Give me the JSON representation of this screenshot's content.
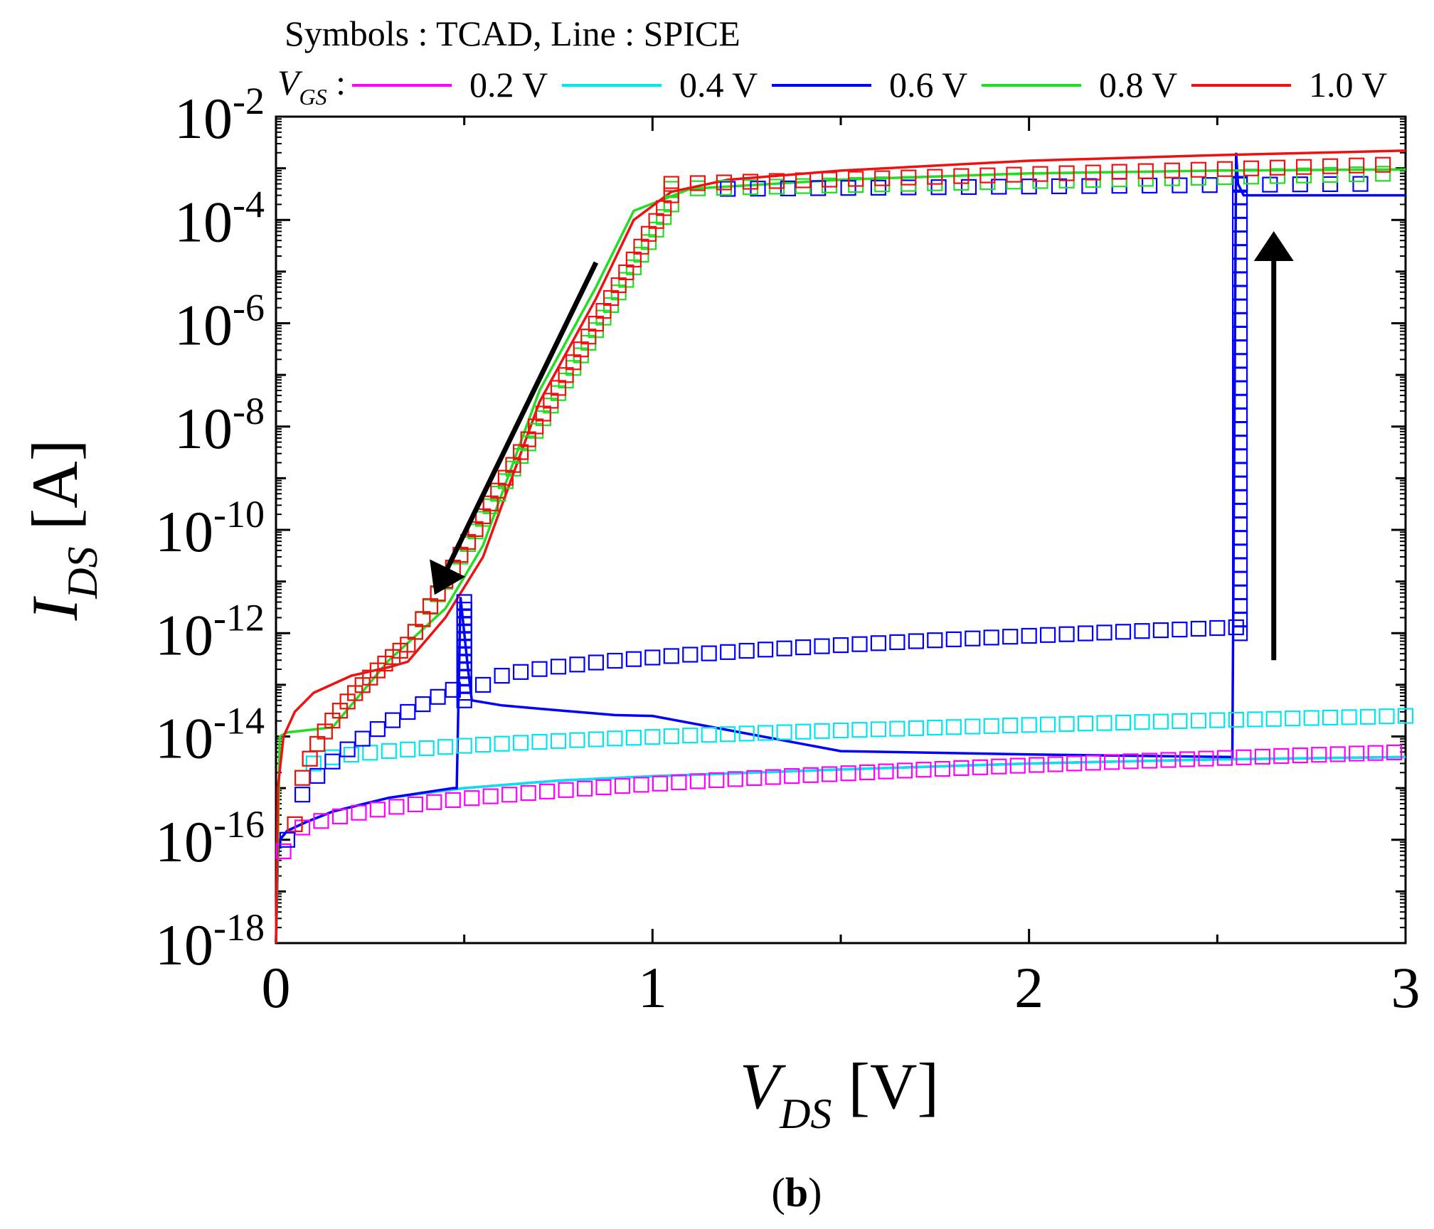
{
  "chart_data": {
    "type": "line",
    "header": "Symbols : TCAD, Line : SPICE",
    "legend_label": {
      "main": "V",
      "sub": "GS",
      "suffix": " :"
    },
    "xlabel": {
      "main": "V",
      "sub": "DS",
      "unit": " [V]"
    },
    "ylabel": {
      "main": "I",
      "sub": "DS",
      "unit": " [A]"
    },
    "panel_label": {
      "open": "(",
      "letter": "b",
      "close": ")"
    },
    "x_scale": "linear",
    "y_scale": "log",
    "xlim": [
      0,
      3
    ],
    "ylim": [
      1e-18,
      0.01
    ],
    "x_ticks": [
      {
        "value": 0,
        "label": "0"
      },
      {
        "value": 1,
        "label": "1"
      },
      {
        "value": 2,
        "label": "2"
      },
      {
        "value": 3,
        "label": "3"
      }
    ],
    "y_ticks": [
      {
        "exp": -18,
        "base": "10",
        "sup": "-18"
      },
      {
        "exp": -16,
        "base": "10",
        "sup": "-16"
      },
      {
        "exp": -14,
        "base": "10",
        "sup": "-14"
      },
      {
        "exp": -12,
        "base": "10",
        "sup": "-12"
      },
      {
        "exp": -10,
        "base": "10",
        "sup": "-10"
      },
      {
        "exp": -8,
        "base": "10",
        "sup": "-8"
      },
      {
        "exp": -6,
        "base": "10",
        "sup": "-6"
      },
      {
        "exp": -4,
        "base": "10",
        "sup": "-4"
      },
      {
        "exp": -2,
        "base": "10",
        "sup": "-2"
      }
    ],
    "grid": false,
    "legend_position": "top",
    "annotations": [
      {
        "type": "arrow",
        "direction": "down-left",
        "from": [
          0.85,
          1.5e-05
        ],
        "to": [
          0.45,
          1.5e-11
        ]
      },
      {
        "type": "arrow",
        "direction": "up",
        "from": [
          2.65,
          3e-13
        ],
        "to": [
          2.65,
          2e-05
        ]
      }
    ],
    "series": [
      {
        "name": "0.2 V",
        "color": "#ff00ff",
        "line": [
          [
            0.0,
            1e-18
          ],
          [
            0.005,
            5e-17
          ],
          [
            0.01,
            1e-16
          ],
          [
            0.03,
            1.5e-16
          ],
          [
            0.08,
            2.2e-16
          ],
          [
            0.15,
            3.5e-16
          ],
          [
            0.3,
            6.5e-16
          ],
          [
            0.5,
            1e-15
          ],
          [
            0.75,
            1.4e-15
          ],
          [
            1.0,
            1.7e-15
          ],
          [
            1.5,
            2.3e-15
          ],
          [
            2.0,
            3e-15
          ],
          [
            2.5,
            3.6e-15
          ],
          [
            3.0,
            4e-15
          ]
        ],
        "markers": {
          "x_start": 0.02,
          "x_end": 3.0,
          "step": 0.05,
          "y_start": 6e-17,
          "y_end": 5e-15,
          "curvature": 0.35
        }
      },
      {
        "name": "0.4 V",
        "color": "#00e5ee",
        "line": [
          [
            0.0,
            1e-18
          ],
          [
            0.005,
            5e-17
          ],
          [
            0.01,
            1e-16
          ],
          [
            0.03,
            1.5e-16
          ],
          [
            0.08,
            2.2e-16
          ],
          [
            0.15,
            3.5e-16
          ],
          [
            0.3,
            6.5e-16
          ],
          [
            0.5,
            1e-15
          ],
          [
            0.75,
            1.4e-15
          ],
          [
            1.0,
            1.7e-15
          ],
          [
            1.5,
            2.3e-15
          ],
          [
            2.0,
            3e-15
          ],
          [
            2.5,
            3.6e-15
          ],
          [
            3.0,
            4e-15
          ]
        ],
        "markers": {
          "x_start": 0.1,
          "x_end": 3.0,
          "step": 0.05,
          "y_start": 3e-15,
          "y_end": 2.5e-14,
          "curvature": 0.5
        }
      },
      {
        "name": "0.6 V",
        "color": "#0000ff",
        "line": [
          [
            0.0,
            1e-18
          ],
          [
            0.005,
            5e-17
          ],
          [
            0.01,
            1e-16
          ],
          [
            0.03,
            1.5e-16
          ],
          [
            0.08,
            2.2e-16
          ],
          [
            0.15,
            3.5e-16
          ],
          [
            0.3,
            6.5e-16
          ],
          [
            0.47,
            1e-15
          ],
          [
            0.48,
            1e-15
          ],
          [
            0.49,
            5e-12
          ],
          [
            0.5,
            1e-12
          ],
          [
            0.51,
            2e-13
          ],
          [
            0.52,
            5e-14
          ],
          [
            0.6,
            4e-14
          ],
          [
            0.75,
            3.2e-14
          ],
          [
            0.9,
            2.6e-14
          ],
          [
            1.0,
            2.5e-14
          ],
          [
            1.5,
            5.2e-15
          ],
          [
            2.0,
            4.5e-15
          ],
          [
            2.54,
            4e-15
          ],
          [
            2.55,
            0.002
          ],
          [
            2.555,
            0.0005
          ],
          [
            2.57,
            0.0003
          ],
          [
            2.8,
            0.0003
          ],
          [
            3.0,
            0.0003
          ]
        ],
        "markers_low": {
          "x_start": 0.03,
          "x_end": 0.5,
          "step": 0.04,
          "y_start": 1e-16,
          "y_end": 1e-13
        },
        "markers_jump_low": {
          "x": 0.5,
          "y_from": 5e-14,
          "y_to": 4e-12,
          "count": 14
        },
        "markers_mid": {
          "x_start": 0.55,
          "x_end": 2.55,
          "step": 0.05,
          "y_start": 1e-13,
          "y_end": 1.3e-12
        },
        "markers_jump_high": {
          "x": 2.56,
          "y_from": 1e-12,
          "y_to": 0.0005,
          "count": 34
        },
        "markers_top": {
          "x_start": 1.2,
          "x_end": 2.9,
          "step": 0.08,
          "y_start": 0.0004,
          "y_end": 0.0005
        }
      },
      {
        "name": "0.8 V",
        "color": "#22dd22",
        "line": [
          [
            0.0,
            1e-18
          ],
          [
            0.01,
            1e-14
          ],
          [
            0.03,
            1.2e-14
          ],
          [
            0.15,
            1.5e-14
          ],
          [
            0.3,
            3e-13
          ],
          [
            0.45,
            3e-12
          ],
          [
            0.55,
            5e-11
          ],
          [
            0.7,
            5e-08
          ],
          [
            0.85,
            5e-06
          ],
          [
            0.95,
            0.00015
          ],
          [
            1.1,
            0.0004
          ],
          [
            1.5,
            0.0006
          ],
          [
            2.0,
            0.0008
          ],
          [
            2.5,
            0.0009
          ],
          [
            3.0,
            0.00095
          ]
        ],
        "markers": {
          "x_start": 0.05,
          "x_end": 1.05,
          "step": 0.02,
          "knee_x": 0.35,
          "y_start": 2e-16,
          "y_knee": 6e-13,
          "y_end": 0.0002
        },
        "markers_top": {
          "x_start": 1.05,
          "x_end": 3.0,
          "step": 0.07,
          "y_start": 0.0004,
          "y_end": 0.0008
        }
      },
      {
        "name": "1.0 V",
        "color": "#ee1111",
        "line": [
          [
            0.0,
            1e-18
          ],
          [
            0.005,
            1e-15
          ],
          [
            0.02,
            1e-14
          ],
          [
            0.05,
            3e-14
          ],
          [
            0.1,
            7e-14
          ],
          [
            0.2,
            1.5e-13
          ],
          [
            0.3,
            2.2e-13
          ],
          [
            0.35,
            2.8e-13
          ],
          [
            0.45,
            2e-12
          ],
          [
            0.55,
            3e-11
          ],
          [
            0.7,
            3e-08
          ],
          [
            0.85,
            3e-06
          ],
          [
            0.95,
            0.0001
          ],
          [
            1.05,
            0.00035
          ],
          [
            1.2,
            0.0006
          ],
          [
            1.5,
            0.0009
          ],
          [
            2.0,
            0.0014
          ],
          [
            2.5,
            0.0018
          ],
          [
            3.0,
            0.0022
          ]
        ],
        "markers": {
          "x_start": 0.05,
          "x_end": 1.05,
          "step": 0.02,
          "knee_x": 0.35,
          "y_start": 2e-16,
          "y_knee": 6e-13,
          "y_end": 0.0003
        },
        "markers_top": {
          "x_start": 1.05,
          "x_end": 3.0,
          "step": 0.07,
          "y_start": 0.0005,
          "y_end": 0.0012
        }
      }
    ]
  }
}
